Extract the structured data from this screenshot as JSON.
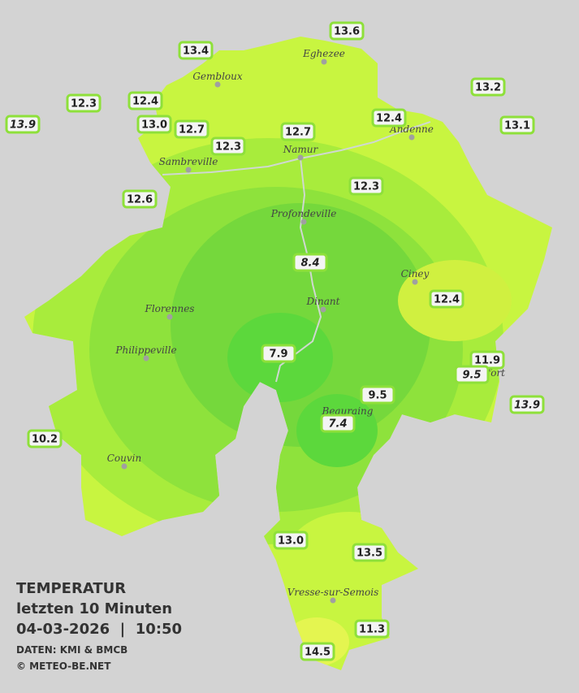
{
  "legend": {
    "title": "TEMPERATUR",
    "period": "letzten 10 Minuten",
    "timestamp": "04-03-2026  |  10:50",
    "source": "DATEN: KMI & BMCB",
    "copyright": "© METEO-BE.NET"
  },
  "cities": [
    "Eghezee",
    "Gembloux",
    "Andenne",
    "Namur",
    "Sambreville",
    "Profondeville",
    "Ciney",
    "Dinant",
    "Florennes",
    "Philippeville",
    "Beauraing",
    "Rochefort",
    "Couvin",
    "Vresse-sur-Semois"
  ],
  "stations": [
    {
      "label": "13.6",
      "italic": false
    },
    {
      "label": "13.4",
      "italic": false
    },
    {
      "label": "13.2",
      "italic": false
    },
    {
      "label": "12.3",
      "italic": false
    },
    {
      "label": "12.4",
      "italic": false
    },
    {
      "label": "13.9",
      "italic": true
    },
    {
      "label": "13.0",
      "italic": false
    },
    {
      "label": "12.7",
      "italic": false
    },
    {
      "label": "12.4",
      "italic": false
    },
    {
      "label": "12.7",
      "italic": false
    },
    {
      "label": "13.1",
      "italic": false
    },
    {
      "label": "12.3",
      "italic": false
    },
    {
      "label": "12.3",
      "italic": false
    },
    {
      "label": "12.6",
      "italic": false
    },
    {
      "label": "8.4",
      "italic": true
    },
    {
      "label": "12.4",
      "italic": false
    },
    {
      "label": "7.9",
      "italic": false
    },
    {
      "label": "11.9",
      "italic": false
    },
    {
      "label": "9.5",
      "italic": true
    },
    {
      "label": "9.5",
      "italic": false
    },
    {
      "label": "13.9",
      "italic": true
    },
    {
      "label": "7.4",
      "italic": true
    },
    {
      "label": "10.2",
      "italic": false
    },
    {
      "label": "13.0",
      "italic": false
    },
    {
      "label": "13.5",
      "italic": false
    },
    {
      "label": "11.3",
      "italic": false
    },
    {
      "label": "14.5",
      "italic": false
    }
  ]
}
